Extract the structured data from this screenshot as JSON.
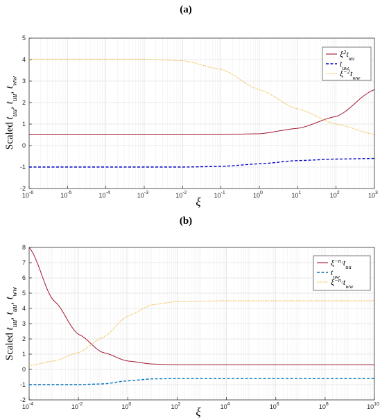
{
  "colors": {
    "red": "#a2142f",
    "blue_dashed": "#0000c8",
    "cyan_dashed": "#0072bd",
    "yellow_dotted": "#edb120",
    "grid": "#e3e3e3",
    "axes": "#333333"
  },
  "chart_data": [
    {
      "panel": "(a)",
      "type": "line",
      "xscale": "log",
      "xlim": [
        1e-06,
        1000
      ],
      "ylim": [
        -2,
        5
      ],
      "xticks_exp": [
        -6,
        -5,
        -4,
        -3,
        -2,
        -1,
        0,
        1,
        2,
        3
      ],
      "yticks": [
        -2,
        -1,
        0,
        1,
        2,
        3,
        4,
        5
      ],
      "xlabel": "ξ",
      "ylabel": "Scaled t_uu, t_uu, t_ww",
      "grid": true,
      "legend_position": "top-right",
      "series": [
        {
          "name": "ξ²t_uu",
          "color": "#a2142f",
          "style": "solid",
          "x": [
            1e-06,
            0.0001,
            0.01,
            0.1,
            1,
            10,
            100,
            1000
          ],
          "y": [
            0.5,
            0.5,
            0.5,
            0.51,
            0.55,
            0.8,
            1.35,
            2.6
          ]
        },
        {
          "name": "t_uw",
          "color": "#0000c8",
          "style": "dashed",
          "x": [
            1e-06,
            0.01,
            0.1,
            1,
            10,
            100,
            1000
          ],
          "y": [
            -1.0,
            -1.0,
            -0.97,
            -0.85,
            -0.7,
            -0.63,
            -0.6
          ]
        },
        {
          "name": "ξ⁻²t_ww",
          "color": "#edb120",
          "style": "dotted",
          "x": [
            1e-06,
            0.001,
            0.01,
            0.1,
            1,
            10,
            100,
            1000
          ],
          "y": [
            4.02,
            4.02,
            3.95,
            3.55,
            2.6,
            1.7,
            1.0,
            0.52
          ]
        }
      ]
    },
    {
      "panel": "(b)",
      "type": "line",
      "xscale": "log",
      "xlim": [
        0.0001,
        10000000000.0
      ],
      "ylim": [
        -2,
        8
      ],
      "xticks_exp": [
        -4,
        -2,
        0,
        2,
        4,
        6,
        8,
        10
      ],
      "yticks": [
        -2,
        -1,
        0,
        1,
        2,
        3,
        4,
        5,
        6,
        7,
        8
      ],
      "xlabel": "ξ",
      "ylabel": "Scaled t_uu, t_uu, t_ww",
      "grid": true,
      "legend_position": "top-right",
      "series": [
        {
          "name": "ξ^{−n₁}t_uu",
          "color": "#a2142f",
          "style": "solid",
          "x": [
            0.0001,
            0.001,
            0.01,
            0.1,
            1,
            10,
            100,
            10000.0,
            10000000000.0
          ],
          "y": [
            8.0,
            4.5,
            2.3,
            1.1,
            0.55,
            0.35,
            0.3,
            0.3,
            0.3
          ]
        },
        {
          "name": "t_uw",
          "color": "#0072bd",
          "style": "dashed",
          "x": [
            0.0001,
            0.01,
            0.1,
            1,
            10,
            100,
            10000.0,
            10000000000.0
          ],
          "y": [
            -1.0,
            -1.0,
            -0.95,
            -0.75,
            -0.62,
            -0.6,
            -0.6,
            -0.6
          ]
        },
        {
          "name": "ξ^{−n₂}t_ww",
          "color": "#edb120",
          "style": "dotted",
          "x": [
            0.0001,
            0.001,
            0.01,
            0.1,
            1,
            10,
            100,
            10000.0,
            10000000000.0
          ],
          "y": [
            0.25,
            0.55,
            1.1,
            2.1,
            3.5,
            4.25,
            4.45,
            4.5,
            4.5
          ]
        }
      ]
    }
  ]
}
